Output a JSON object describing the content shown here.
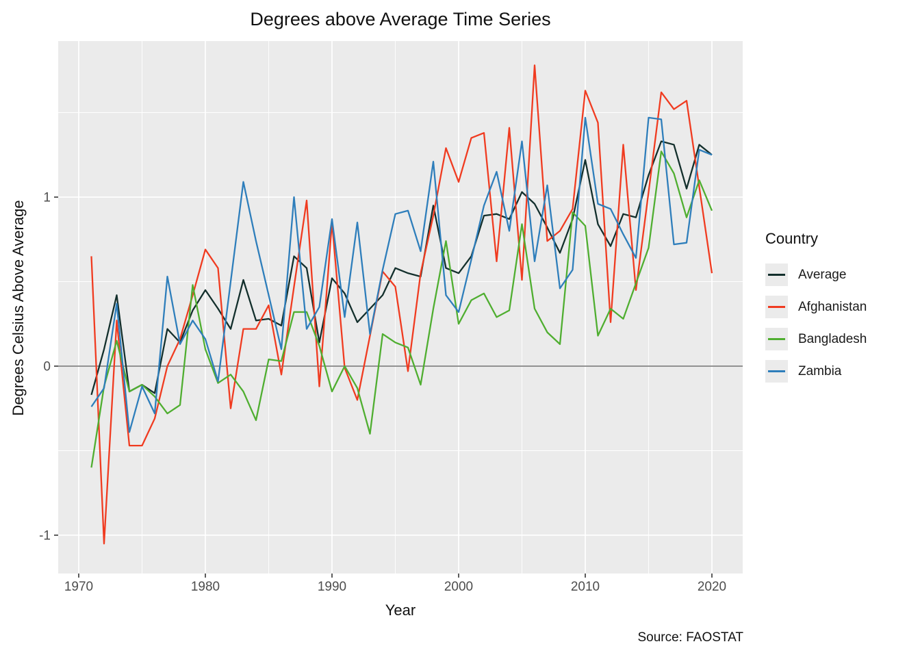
{
  "title": "Degrees above Average Time Series",
  "axes": {
    "x_label": "Year",
    "y_label": "Degrees Celsius Above Average",
    "x_ticks": [
      1970,
      1980,
      1990,
      2000,
      2010,
      2020
    ],
    "y_ticks": [
      -1,
      0,
      1
    ]
  },
  "legend": {
    "title": "Country",
    "items": [
      {
        "label": "Average",
        "color": "#132f2c"
      },
      {
        "label": "Afghanistan",
        "color": "#f03b20"
      },
      {
        "label": "Bangladesh",
        "color": "#4fae30"
      },
      {
        "label": "Zambia",
        "color": "#2e7ebb"
      }
    ]
  },
  "source": "Source: FAOSTAT",
  "colors": {
    "plot_background": "#ebebeb",
    "grid_major": "#ffffff",
    "grid_minor": "#ffffff",
    "zero_line": "#919191",
    "tick_mark": "#333333",
    "tick_label": "#4d4d4d"
  },
  "chart_data": {
    "type": "line",
    "title": "Degrees above Average Time Series",
    "xlabel": "Year",
    "ylabel": "Degrees Celsius Above Average",
    "xlim": [
      1968.5,
      2022.5
    ],
    "ylim": [
      -1.23,
      1.93
    ],
    "legend_position": "right",
    "grid": true,
    "zero_line": 0,
    "x": [
      1971,
      1972,
      1973,
      1974,
      1975,
      1976,
      1977,
      1978,
      1979,
      1980,
      1981,
      1982,
      1983,
      1984,
      1985,
      1986,
      1987,
      1988,
      1989,
      1990,
      1991,
      1992,
      1993,
      1994,
      1995,
      1996,
      1997,
      1998,
      1999,
      2000,
      2001,
      2002,
      2003,
      2004,
      2005,
      2006,
      2007,
      2008,
      2009,
      2010,
      2011,
      2012,
      2013,
      2014,
      2015,
      2016,
      2017,
      2018,
      2019,
      2020
    ],
    "series": [
      {
        "name": "Average",
        "color": "#132f2c",
        "values": [
          -0.17,
          0.1,
          0.42,
          -0.15,
          -0.11,
          -0.16,
          0.22,
          0.14,
          0.33,
          0.45,
          0.34,
          0.22,
          0.51,
          0.27,
          0.28,
          0.24,
          0.65,
          0.58,
          0.14,
          0.52,
          0.43,
          0.26,
          0.34,
          0.42,
          0.58,
          0.55,
          0.53,
          0.95,
          0.58,
          0.55,
          0.65,
          0.89,
          0.9,
          0.87,
          1.03,
          0.96,
          0.82,
          0.67,
          0.87,
          1.22,
          0.84,
          0.71,
          0.9,
          0.88,
          1.13,
          1.33,
          1.31,
          1.05,
          1.31,
          1.25
        ]
      },
      {
        "name": "Afghanistan",
        "color": "#f03b20",
        "values": [
          0.65,
          -1.05,
          0.27,
          -0.47,
          -0.47,
          -0.31,
          0.0,
          0.16,
          0.42,
          0.69,
          0.58,
          -0.25,
          0.22,
          0.22,
          0.36,
          -0.05,
          0.47,
          0.98,
          -0.12,
          0.85,
          -0.01,
          -0.2,
          0.18,
          0.56,
          0.47,
          -0.03,
          0.55,
          0.89,
          1.29,
          1.09,
          1.35,
          1.38,
          0.62,
          1.41,
          0.51,
          1.78,
          0.74,
          0.8,
          0.93,
          1.63,
          1.44,
          0.26,
          1.31,
          0.45,
          1.03,
          1.62,
          1.52,
          1.57,
          1.06,
          0.55
        ]
      },
      {
        "name": "Bangladesh",
        "color": "#4fae30",
        "values": [
          -0.6,
          -0.12,
          0.15,
          -0.15,
          -0.11,
          -0.18,
          -0.28,
          -0.23,
          0.48,
          0.1,
          -0.1,
          -0.05,
          -0.15,
          -0.32,
          0.04,
          0.03,
          0.32,
          0.32,
          0.12,
          -0.15,
          0.0,
          -0.13,
          -0.4,
          0.19,
          0.14,
          0.11,
          -0.11,
          0.34,
          0.74,
          0.25,
          0.39,
          0.43,
          0.29,
          0.33,
          0.84,
          0.34,
          0.2,
          0.13,
          0.91,
          0.83,
          0.18,
          0.34,
          0.28,
          0.49,
          0.7,
          1.27,
          1.14,
          0.88,
          1.1,
          0.92
        ]
      },
      {
        "name": "Zambia",
        "color": "#2e7ebb",
        "values": [
          -0.24,
          -0.13,
          0.37,
          -0.39,
          -0.12,
          -0.28,
          0.53,
          0.13,
          0.27,
          0.16,
          -0.09,
          0.5,
          1.09,
          0.74,
          0.42,
          0.1,
          1.0,
          0.22,
          0.35,
          0.87,
          0.29,
          0.85,
          0.19,
          0.57,
          0.9,
          0.92,
          0.68,
          1.21,
          0.42,
          0.32,
          0.63,
          0.95,
          1.15,
          0.8,
          1.33,
          0.62,
          1.07,
          0.46,
          0.57,
          1.47,
          0.96,
          0.93,
          0.78,
          0.64,
          1.47,
          1.46,
          0.72,
          0.73,
          1.28,
          1.25
        ]
      }
    ]
  }
}
